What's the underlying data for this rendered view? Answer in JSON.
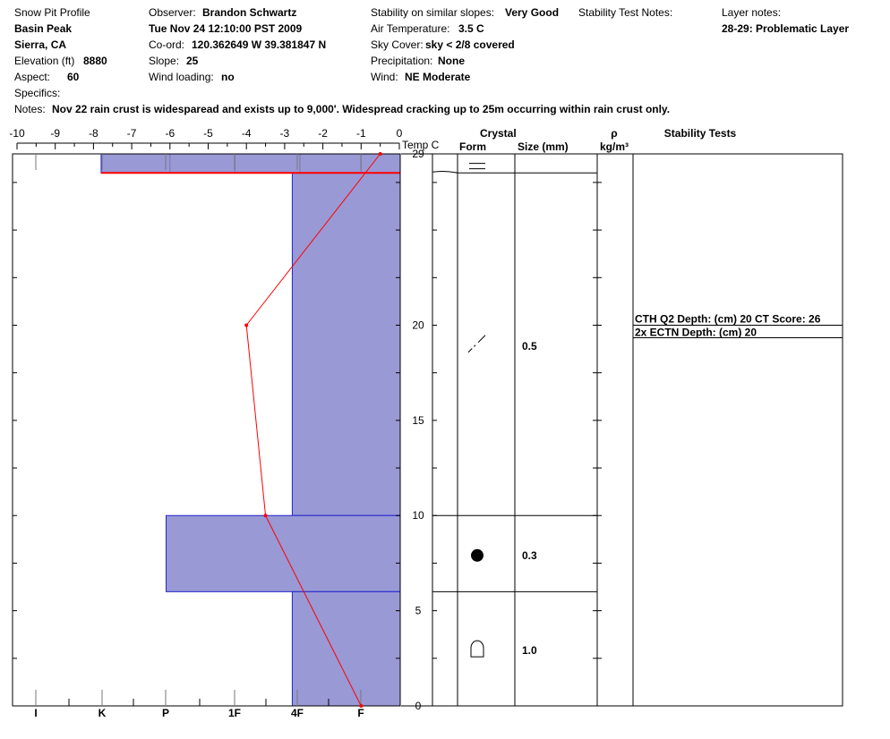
{
  "header": {
    "col1": {
      "title": "Snow Pit Profile",
      "location": "Basin Peak",
      "region": "Sierra, CA",
      "elevation_label": "Elevation (ft)",
      "elevation_value": "8880",
      "aspect_label": "Aspect:",
      "aspect_value": "60",
      "specifics_label": "Specifics:"
    },
    "col2": {
      "observer_label": "Observer:",
      "observer_value": "Brandon Schwartz",
      "datetime": "Tue Nov 24 12:10:00 PST 2009",
      "coord_label": "Co-ord:",
      "coord_value": "120.362649 W 39.381847 N",
      "slope_label": "Slope:",
      "slope_value": "25",
      "wind_loading_label": "Wind loading:",
      "wind_loading_value": "no"
    },
    "col3": {
      "stability_label": "Stability on similar slopes:",
      "stability_value": "Very Good",
      "air_temp_label": "Air Temperature:",
      "air_temp_value": "3.5 C",
      "sky_label": "Sky Cover:",
      "sky_value": "sky < 2/8 covered",
      "precip_label": "Precipitation:",
      "precip_value": "None",
      "wind_label": "Wind:",
      "wind_value": "NE Moderate"
    },
    "col4": {
      "stability_notes_label": "Stability Test Notes:"
    },
    "col5": {
      "layer_notes_label": "Layer notes:",
      "layer_note": "28-29: Problematic Layer"
    },
    "notes_label": "Notes:",
    "notes_value": "Nov 22 rain crust is widesparead and exists up to 9,000'. Widespread cracking up to 25m occurring within rain crust only."
  },
  "table_headers": {
    "temp": "Temp C",
    "crystal": "Crystal",
    "form": "Form",
    "size": "Size (mm)",
    "rho": "ρ",
    "density": "kg/m³",
    "stability_tests": "Stability Tests"
  },
  "stability_tests": [
    "CTH Q2 Depth: (cm) 20 CT Score: 26",
    "2x ECTN   Depth: (cm) 20"
  ],
  "chart_data": {
    "type": "bar",
    "temp_axis": {
      "ticks": [
        "-10",
        "-9",
        "-8",
        "-7",
        "-6",
        "-5",
        "-4",
        "-3",
        "-2",
        "-1",
        "0"
      ],
      "range": [
        -10,
        0
      ]
    },
    "hardness_axis": {
      "ticks": [
        "I",
        "K",
        "P",
        "1F",
        "4F",
        "F"
      ]
    },
    "height_axis": {
      "ticks": [
        "0",
        "5",
        "10",
        "15",
        "20",
        "29"
      ],
      "range": [
        0,
        29
      ]
    },
    "hardness_layers": [
      {
        "bottom": 28,
        "top": 29,
        "hardness_temp_equiv": -7.8
      },
      {
        "bottom": 10,
        "top": 28,
        "hardness_temp_equiv": -2.8
      },
      {
        "bottom": 6,
        "top": 10,
        "hardness_temp_equiv": -6.1
      },
      {
        "bottom": 0,
        "top": 6,
        "hardness_temp_equiv": -2.8
      }
    ],
    "temperature_profile": [
      {
        "height": 29,
        "temp": -0.5
      },
      {
        "height": 20,
        "temp": -4.0
      },
      {
        "height": 10,
        "temp": -3.5
      },
      {
        "height": 0,
        "temp": -1.0
      }
    ],
    "crystals": [
      {
        "height": 28.5,
        "form": "rain-crust",
        "size": ""
      },
      {
        "height": 19,
        "form": "decomposing",
        "size": "0.5"
      },
      {
        "height": 8,
        "form": "rounded",
        "size": "0.3"
      },
      {
        "height": 3,
        "form": "faceted-rounded",
        "size": "1.0"
      }
    ],
    "layer_boundaries": [
      28,
      10,
      6
    ],
    "stability_test_height": 20,
    "colors": {
      "layer_fill": "#9999d6",
      "layer_stroke": "#2222cc",
      "temp_line": "#ff0000"
    }
  }
}
